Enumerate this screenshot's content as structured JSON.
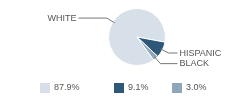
{
  "chart_data": {
    "type": "pie",
    "categories": [
      "WHITE",
      "HISPANIC",
      "BLACK"
    ],
    "values": [
      87.9,
      9.1,
      3.0
    ],
    "value_labels": [
      "87.9%",
      "9.1%",
      "3.0%"
    ],
    "colors": [
      "#d7e0e9",
      "#2e5878",
      "#8fa6bb"
    ],
    "legend": "bottom"
  }
}
